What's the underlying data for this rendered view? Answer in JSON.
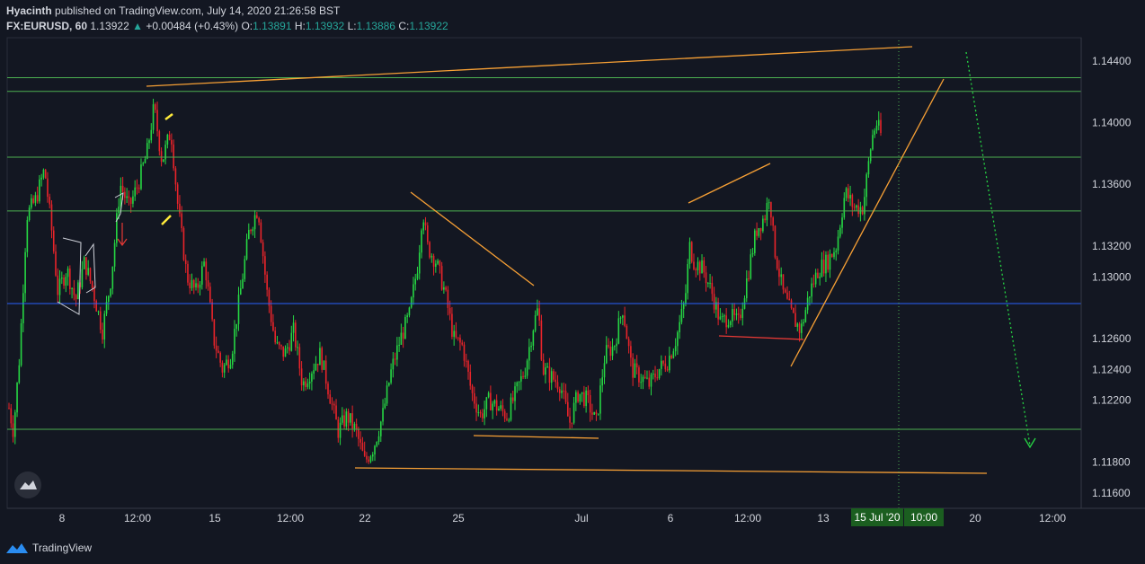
{
  "header": {
    "author": "Hyacinth",
    "published": "published on TradingView.com, July 14, 2020 21:26:58 BST",
    "symbol": "FX:EURUSD, 60",
    "last": "1.13922",
    "change": "+0.00484 (+0.43%)",
    "open_label": "O:",
    "open": "1.13891",
    "high_label": "H:",
    "high": "1.13932",
    "low_label": "L:",
    "low": "1.13886",
    "close_label": "C:",
    "close": "1.13922"
  },
  "footer": {
    "brand": "TradingView"
  },
  "colors": {
    "background": "#131722",
    "up_candle": "#26d643",
    "down_candle": "#e8242a",
    "hline_green": "#4caf50",
    "hline_blue": "#2962ff",
    "trend_orange": "#f7a035",
    "support_red": "#e53935",
    "arrow_green": "#26a69a",
    "label_green": "#1b5e20",
    "label_blue": "#1e3f8a",
    "last_price": "#00ff3c"
  },
  "chart_data": {
    "type": "candlestick",
    "title": "FX:EURUSD, 60",
    "ylim": [
      1.115,
      1.1455
    ],
    "y_ticks": [
      "1.14400",
      "1.14000",
      "1.13600",
      "1.13200",
      "1.13000",
      "1.12600",
      "1.12400",
      "1.12200",
      "1.11800",
      "1.11600"
    ],
    "x_ticks": [
      "8",
      "12:00",
      "15",
      "12:00",
      "22",
      "25",
      "Jul",
      "6",
      "12:00",
      "13",
      "20",
      "12:00"
    ],
    "crosshair_labels": {
      "date": "15 Jul '20",
      "time": "10:00"
    },
    "horizontal_levels": [
      {
        "value": 1.14291,
        "label": "1.14291",
        "style": "green"
      },
      {
        "value": 1.14202,
        "label": "1.14202",
        "style": "green"
      },
      {
        "value": 1.13776,
        "label": "1.13776",
        "style": "green"
      },
      {
        "value": 1.13427,
        "label": "1.13427",
        "style": "green"
      },
      {
        "value": 1.12827,
        "label": "1.12827",
        "style": "blue"
      },
      {
        "value": 1.12012,
        "label": "1.12012",
        "style": "green"
      }
    ],
    "last_price": {
      "value": 1.13922,
      "label": "1.13922"
    },
    "price_path": [
      [
        0,
        1.1215
      ],
      [
        0.005,
        1.12
      ],
      [
        0.012,
        1.125
      ],
      [
        0.02,
        1.134
      ],
      [
        0.03,
        1.135
      ],
      [
        0.04,
        1.137
      ],
      [
        0.048,
        1.133
      ],
      [
        0.055,
        1.129
      ],
      [
        0.065,
        1.1305
      ],
      [
        0.075,
        1.1285
      ],
      [
        0.085,
        1.131
      ],
      [
        0.095,
        1.129
      ],
      [
        0.105,
        1.1265
      ],
      [
        0.115,
        1.13
      ],
      [
        0.125,
        1.136
      ],
      [
        0.135,
        1.1345
      ],
      [
        0.145,
        1.136
      ],
      [
        0.155,
        1.138
      ],
      [
        0.163,
        1.141
      ],
      [
        0.172,
        1.1375
      ],
      [
        0.182,
        1.1395
      ],
      [
        0.19,
        1.1345
      ],
      [
        0.2,
        1.13
      ],
      [
        0.21,
        1.129
      ],
      [
        0.22,
        1.131
      ],
      [
        0.23,
        1.126
      ],
      [
        0.24,
        1.124
      ],
      [
        0.25,
        1.125
      ],
      [
        0.26,
        1.129
      ],
      [
        0.27,
        1.133
      ],
      [
        0.28,
        1.1345
      ],
      [
        0.29,
        1.129
      ],
      [
        0.3,
        1.1255
      ],
      [
        0.31,
        1.125
      ],
      [
        0.32,
        1.1265
      ],
      [
        0.33,
        1.123
      ],
      [
        0.34,
        1.124
      ],
      [
        0.35,
        1.125
      ],
      [
        0.36,
        1.1225
      ],
      [
        0.37,
        1.12
      ],
      [
        0.38,
        1.121
      ],
      [
        0.39,
        1.12
      ],
      [
        0.4,
        1.118
      ],
      [
        0.41,
        1.119
      ],
      [
        0.42,
        1.121
      ],
      [
        0.43,
        1.124
      ],
      [
        0.44,
        1.126
      ],
      [
        0.45,
        1.1275
      ],
      [
        0.46,
        1.131
      ],
      [
        0.465,
        1.1345
      ],
      [
        0.47,
        1.132
      ],
      [
        0.48,
        1.131
      ],
      [
        0.49,
        1.129
      ],
      [
        0.5,
        1.126
      ],
      [
        0.51,
        1.1255
      ],
      [
        0.52,
        1.1225
      ],
      [
        0.53,
        1.121
      ],
      [
        0.54,
        1.122
      ],
      [
        0.55,
        1.1215
      ],
      [
        0.56,
        1.121
      ],
      [
        0.57,
        1.1225
      ],
      [
        0.58,
        1.124
      ],
      [
        0.59,
        1.127
      ],
      [
        0.595,
        1.128
      ],
      [
        0.6,
        1.124
      ],
      [
        0.61,
        1.1235
      ],
      [
        0.62,
        1.123
      ],
      [
        0.63,
        1.1205
      ],
      [
        0.64,
        1.1225
      ],
      [
        0.65,
        1.122
      ],
      [
        0.66,
        1.1205
      ],
      [
        0.67,
        1.125
      ],
      [
        0.68,
        1.1255
      ],
      [
        0.69,
        1.128
      ],
      [
        0.7,
        1.124
      ],
      [
        0.71,
        1.1235
      ],
      [
        0.72,
        1.123
      ],
      [
        0.73,
        1.124
      ],
      [
        0.74,
        1.1245
      ],
      [
        0.75,
        1.126
      ],
      [
        0.76,
        1.1285
      ],
      [
        0.765,
        1.132
      ],
      [
        0.77,
        1.131
      ],
      [
        0.78,
        1.1305
      ],
      [
        0.79,
        1.129
      ],
      [
        0.8,
        1.127
      ],
      [
        0.81,
        1.1275
      ],
      [
        0.82,
        1.127
      ],
      [
        0.83,
        1.13
      ],
      [
        0.84,
        1.133
      ],
      [
        0.85,
        1.134
      ],
      [
        0.855,
        1.1355
      ],
      [
        0.86,
        1.132
      ],
      [
        0.87,
        1.129
      ],
      [
        0.88,
        1.1275
      ],
      [
        0.89,
        1.1265
      ],
      [
        0.9,
        1.129
      ],
      [
        0.91,
        1.1305
      ],
      [
        0.92,
        1.131
      ],
      [
        0.93,
        1.132
      ],
      [
        0.94,
        1.1355
      ],
      [
        0.95,
        1.1345
      ],
      [
        0.96,
        1.1345
      ],
      [
        0.97,
        1.139
      ],
      [
        0.975,
        1.14
      ],
      [
        0.98,
        1.13922
      ]
    ]
  }
}
